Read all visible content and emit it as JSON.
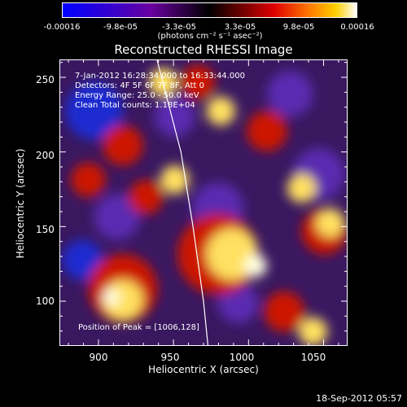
{
  "colorbar": {
    "ticks": [
      "-0.00016",
      "-9.8e-05",
      "-3.3e-05",
      "3.3e-05",
      "9.8e-05",
      "0.00016"
    ],
    "unit": "(photons cm⁻² s⁻¹ asec⁻²)"
  },
  "info": {
    "time": "7-Jan-2012 16:28:34.000 to 16:33:44.000",
    "detectors": "Detectors: 4F 5F 6F 7F 8F, Att 0",
    "energy": "Energy Range: 25.0 - 50.0 keV",
    "method": "Clean     Total counts: 1.18E+04",
    "peak": "Position of Peak = [1006,128]"
  },
  "footer": "18-Sep-2012 05:57",
  "chart_data": {
    "type": "heatmap",
    "title": "Reconstructed RHESSI Image",
    "xlabel": "Heliocentric X (arcsec)",
    "ylabel": "Heliocentric Y (arcsec)",
    "xlim": [
      874,
      1066
    ],
    "ylim": [
      70,
      262
    ],
    "xticks": [
      900,
      950,
      1000,
      1050
    ],
    "yticks": [
      100,
      150,
      200,
      250
    ],
    "zlim": [
      -0.00016,
      0.00016
    ],
    "limb_curve": [
      [
        939,
        262
      ],
      [
        955,
        200
      ],
      [
        963,
        150
      ],
      [
        970,
        100
      ],
      [
        973,
        70
      ]
    ],
    "peak": [
      1006,
      128
    ],
    "colors": {
      "strong_negative": "#1e2ad0",
      "negative": "#5a2bb0",
      "zero": "#000000",
      "positive": "#cc1500",
      "strong_positive": "#ffe060",
      "peak": "#ffffe0"
    }
  }
}
